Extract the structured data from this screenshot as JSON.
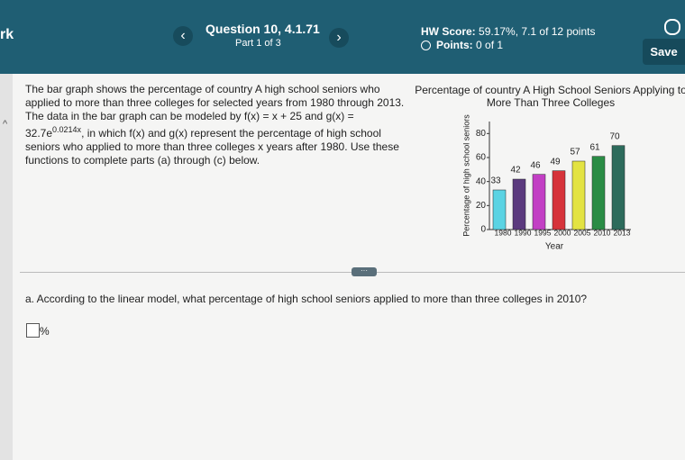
{
  "header": {
    "left": "rk",
    "question": "Question 10, 4.1.71",
    "part": "Part 1 of 3",
    "hw_score_label": "HW Score:",
    "hw_score": "59.17%, 7.1 of 12 points",
    "points_label": "Points:",
    "points": "0 of 1",
    "save": "Save"
  },
  "problem": {
    "intro": "The bar graph shows the percentage of country A high school seniors who applied to more than three colleges for selected years from 1980 through 2013. The data in the bar graph can be modeled by ",
    "f": "f(x) = x + 25",
    "and": " and ",
    "g_base": "g(x) = 32.7e",
    "g_exp": "0.0214x",
    "rest": ", in which f(x) and g(x) represent the percentage of high school seniors who applied to more than three colleges x years after 1980. Use these functions to complete parts (a) through (c) below."
  },
  "chart_data": {
    "type": "bar",
    "title": "Percentage of country A High School Seniors Applying to More Than Three Colleges",
    "ylabel": "Percentage of high school seniors",
    "xlabel": "Year",
    "categories": [
      "1980",
      "1990",
      "1995",
      "2000",
      "2005",
      "2010",
      "2013"
    ],
    "values": [
      33,
      42,
      46,
      49,
      57,
      61,
      70
    ],
    "colors": [
      "#5bd3e3",
      "#5b3a7e",
      "#c23fc4",
      "#d6333a",
      "#e3e343",
      "#2a8c45",
      "#2d6b5c"
    ],
    "ylim": [
      0,
      90
    ],
    "yticks": [
      0,
      20,
      40,
      60,
      80
    ]
  },
  "question": {
    "text": "a. According to the linear model, what percentage of high school seniors applied to more than three colleges in 2010?",
    "unit": "%"
  }
}
